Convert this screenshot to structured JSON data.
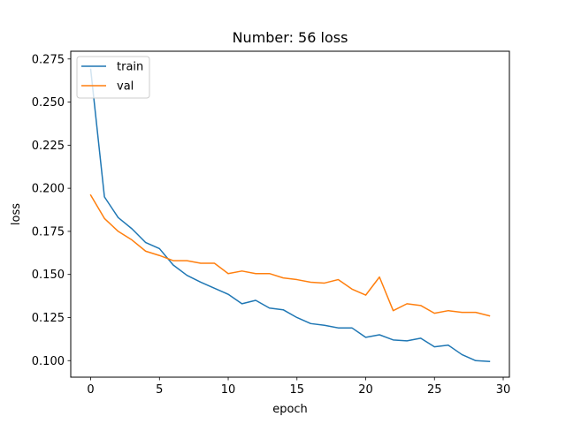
{
  "chart_data": {
    "type": "line",
    "title": "Number: 56 loss",
    "xlabel": "epoch",
    "ylabel": "loss",
    "xlim": [
      -1.45,
      30.45
    ],
    "ylim": [
      0.0904,
      0.2795
    ],
    "xticks": [
      0,
      5,
      10,
      15,
      20,
      25,
      30
    ],
    "yticks": [
      0.1,
      0.125,
      0.15,
      0.175,
      0.2,
      0.225,
      0.25,
      0.275
    ],
    "ytick_labels": [
      "0.100",
      "0.125",
      "0.150",
      "0.175",
      "0.200",
      "0.225",
      "0.250",
      "0.275"
    ],
    "grid": false,
    "legend_position": "top-left",
    "x": [
      0,
      1,
      2,
      3,
      4,
      5,
      6,
      7,
      8,
      9,
      10,
      11,
      12,
      13,
      14,
      15,
      16,
      17,
      18,
      19,
      20,
      21,
      22,
      23,
      24,
      25,
      26,
      27,
      28,
      29
    ],
    "series": [
      {
        "name": "train",
        "color": "#1f77b4",
        "values": [
          0.269,
          0.195,
          0.183,
          0.1765,
          0.1685,
          0.165,
          0.1555,
          0.1495,
          0.1455,
          0.142,
          0.1385,
          0.133,
          0.135,
          0.1305,
          0.1295,
          0.125,
          0.1215,
          0.1205,
          0.119,
          0.119,
          0.1135,
          0.115,
          0.112,
          0.1115,
          0.113,
          0.108,
          0.109,
          0.1035,
          0.1,
          0.0995
        ]
      },
      {
        "name": "val",
        "color": "#ff7f0e",
        "values": [
          0.196,
          0.1825,
          0.175,
          0.17,
          0.1635,
          0.161,
          0.158,
          0.158,
          0.1565,
          0.1565,
          0.1505,
          0.152,
          0.1505,
          0.1505,
          0.148,
          0.147,
          0.1455,
          0.145,
          0.147,
          0.1415,
          0.138,
          0.1485,
          0.129,
          0.133,
          0.132,
          0.1275,
          0.129,
          0.128,
          0.128,
          0.126
        ]
      }
    ]
  }
}
